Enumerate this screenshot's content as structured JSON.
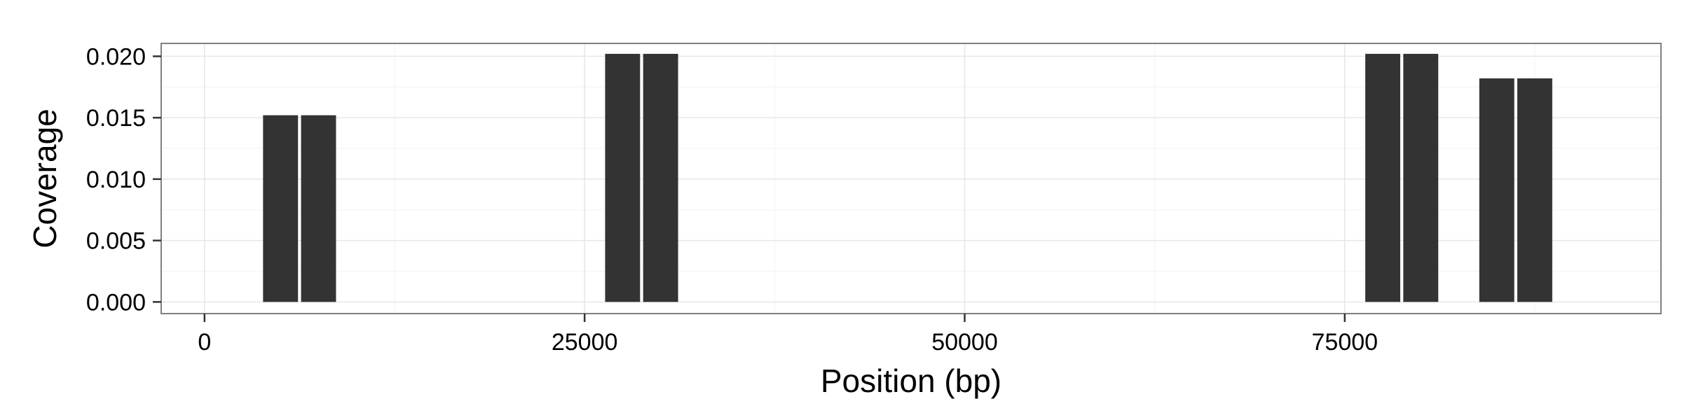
{
  "chart_data": {
    "type": "bar",
    "xlabel": "Position (bp)",
    "ylabel": "Coverage",
    "xlim": [
      -2850,
      95800
    ],
    "ylim": [
      -0.00095,
      0.02105
    ],
    "x_ticks": [
      0,
      25000,
      50000,
      75000
    ],
    "x_tick_labels": [
      "0",
      "25000",
      "50000",
      "75000"
    ],
    "y_ticks": [
      0.0,
      0.005,
      0.01,
      0.015,
      0.02
    ],
    "y_tick_labels": [
      "0.000",
      "0.005",
      "0.010",
      "0.015",
      "0.020"
    ],
    "bar_width": 2300,
    "bars": [
      {
        "x": 5000,
        "value": 0.0152
      },
      {
        "x": 7500,
        "value": 0.0152
      },
      {
        "x": 27500,
        "value": 0.0202
      },
      {
        "x": 30000,
        "value": 0.0202
      },
      {
        "x": 77500,
        "value": 0.0202
      },
      {
        "x": 80000,
        "value": 0.0202
      },
      {
        "x": 85000,
        "value": 0.0182
      },
      {
        "x": 87500,
        "value": 0.0182
      }
    ],
    "bar_color": "#333333",
    "grid": true,
    "legend": "none"
  }
}
